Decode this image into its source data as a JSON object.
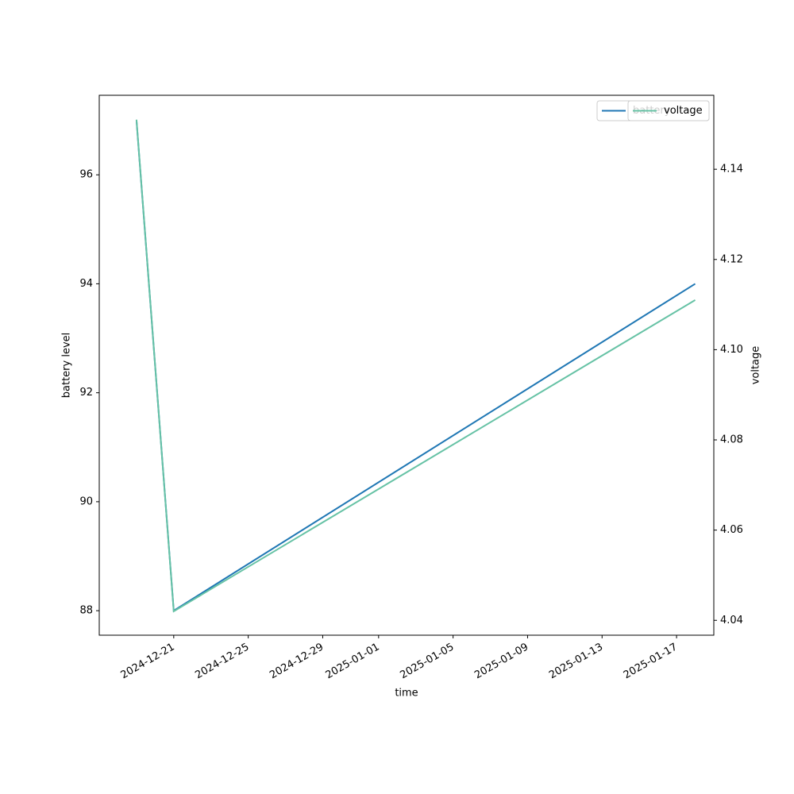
{
  "chart_data": {
    "type": "line",
    "x": [
      "2024-12-19",
      "2024-12-21",
      "2025-01-18"
    ],
    "xlabel": "time",
    "ylabel": "battery level",
    "y2label": "voltage",
    "xlim": [
      "2024-12-17",
      "2025-01-19"
    ],
    "xticks": [
      "2024-12-21",
      "2024-12-25",
      "2024-12-29",
      "2025-01-01",
      "2025-01-05",
      "2025-01-09",
      "2025-01-13",
      "2025-01-17"
    ],
    "ylim": [
      87.55,
      97.46
    ],
    "yticks": [
      88,
      90,
      92,
      94,
      96
    ],
    "y2lim": [
      4.0367,
      4.1564
    ],
    "y2ticks": [
      4.04,
      4.06,
      4.08,
      4.1,
      4.12,
      4.14
    ],
    "y2tick_decimals": 2,
    "legend_position": "upper right",
    "series": [
      {
        "name": "battery",
        "color": "#1f77b4",
        "values": [
          97,
          88,
          94
        ]
      },
      {
        "name": "voltage",
        "color": "#66c2a5",
        "values": [
          4.151,
          4.042,
          4.111
        ],
        "axis": "y2"
      }
    ]
  }
}
